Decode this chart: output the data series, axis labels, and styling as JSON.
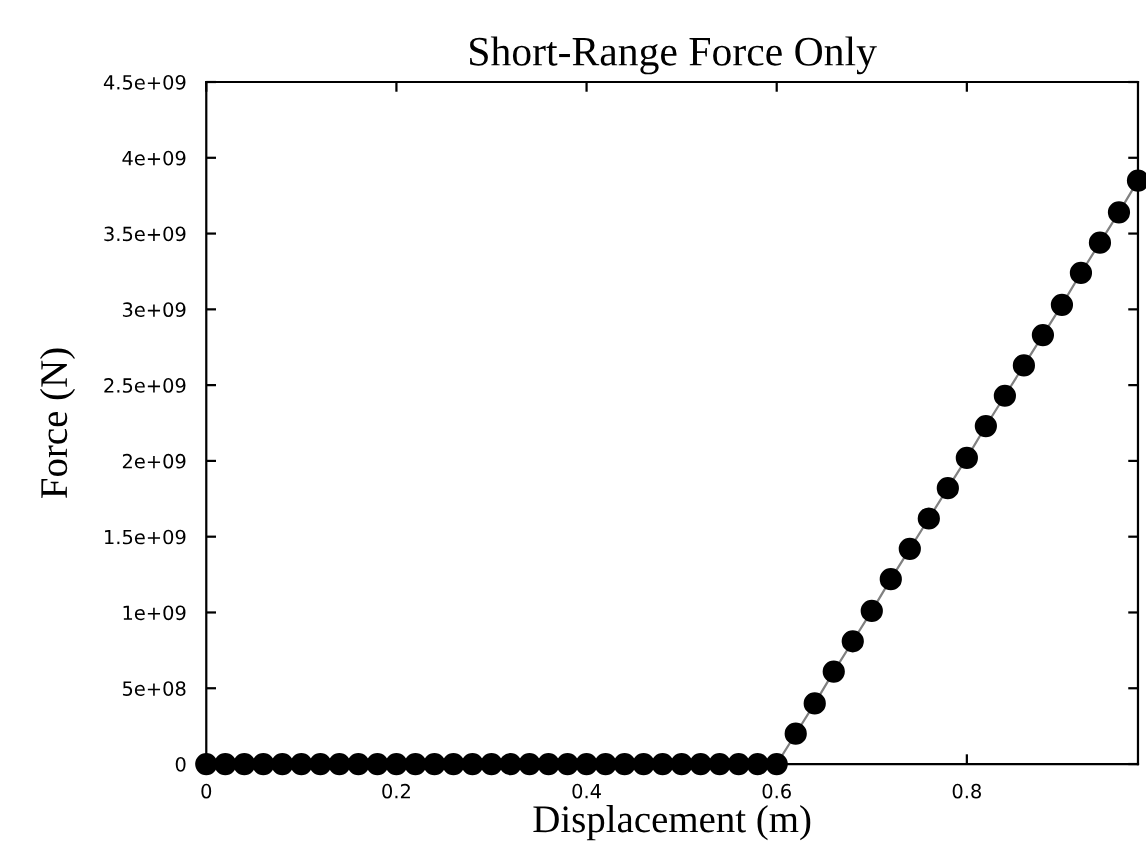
{
  "chart_data": {
    "type": "line",
    "title": "Short-Range Force Only",
    "xlabel": "Displacement (m)",
    "ylabel": "Force (N)",
    "x": [
      0,
      0.02,
      0.04,
      0.06,
      0.08,
      0.1,
      0.12,
      0.14,
      0.16,
      0.18,
      0.2,
      0.22,
      0.24,
      0.26,
      0.28,
      0.3,
      0.32,
      0.34,
      0.36,
      0.38,
      0.4,
      0.42,
      0.44,
      0.46,
      0.48,
      0.5,
      0.52,
      0.54,
      0.56,
      0.58,
      0.6,
      0.62,
      0.64,
      0.66,
      0.68,
      0.7,
      0.72,
      0.74,
      0.76,
      0.78,
      0.8,
      0.82,
      0.84,
      0.86,
      0.88,
      0.9,
      0.92,
      0.94,
      0.96,
      0.98
    ],
    "series": [
      {
        "color": "#000000",
        "values": [
          0,
          0,
          0,
          0,
          0,
          0,
          0,
          0,
          0,
          0,
          0,
          0,
          0,
          0,
          0,
          0,
          0,
          0,
          0,
          0,
          0,
          0,
          0,
          0,
          0,
          0,
          0,
          0,
          0,
          0,
          0,
          200000000,
          400000000,
          610000000,
          810000000,
          1010000000,
          1220000000,
          1420000000,
          1620000000,
          1820000000,
          2020000000,
          2230000000,
          2430000000,
          2630000000,
          2830000000,
          3030000000,
          3240000000,
          3440000000,
          3640000000,
          3850000000
        ]
      }
    ],
    "xlim": [
      0,
      0.98
    ],
    "xticks": [
      0,
      0.2,
      0.4,
      0.6,
      0.8
    ],
    "ylim": [
      0,
      4500000000
    ],
    "yticks": [
      0,
      {
        "value": 500000000,
        "label": "5e+08"
      },
      {
        "value": 1000000000,
        "label": "1e+09"
      },
      {
        "value": 1500000000,
        "label": "1.5e+09"
      },
      {
        "value": 2000000000,
        "label": "2e+09"
      },
      {
        "value": 2500000000,
        "label": "2.5e+09"
      },
      {
        "value": 3000000000,
        "label": "3e+09"
      },
      {
        "value": 3500000000,
        "label": "3.5e+09"
      },
      {
        "value": 4000000000,
        "label": "4e+09"
      },
      {
        "value": 4500000000,
        "label": "4.5e+09"
      }
    ],
    "marker": "circle",
    "line_style": "solid",
    "grid": false,
    "legend": false
  }
}
